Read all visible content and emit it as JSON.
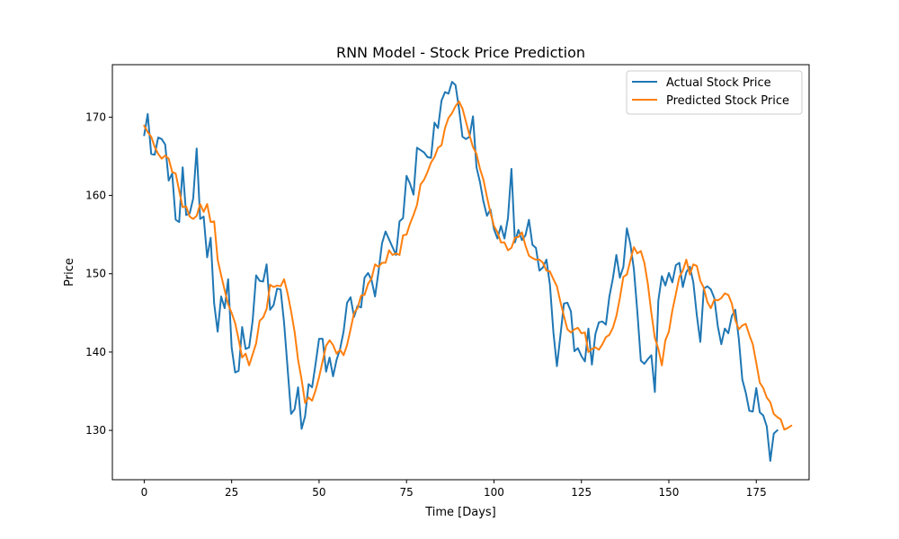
{
  "chart_data": {
    "type": "line",
    "title": "RNN Model - Stock Price Prediction",
    "xlabel": "Time [Days]",
    "ylabel": "Price",
    "xlim": [
      -9.1,
      190.1
    ],
    "ylim": [
      123.7,
      176.7
    ],
    "xticks": [
      0,
      25,
      50,
      75,
      100,
      125,
      150,
      175
    ],
    "yticks": [
      130,
      140,
      150,
      160,
      170
    ],
    "grid": false,
    "legend_position": "upper right",
    "series": [
      {
        "name": "Actual Stock Price",
        "color": "#1f77b4",
        "x_start": 0,
        "values": [
          167.7,
          170.4,
          165.3,
          165.2,
          167.4,
          167.2,
          166.5,
          161.9,
          162.8,
          156.9,
          156.6,
          163.6,
          157.5,
          157.7,
          159.6,
          166.0,
          157.0,
          157.3,
          152.1,
          154.6,
          146.2,
          142.6,
          147.1,
          145.6,
          149.3,
          140.6,
          137.4,
          137.6,
          143.2,
          140.4,
          140.6,
          144.0,
          149.8,
          149.1,
          149.0,
          151.2,
          145.4,
          146.0,
          148.1,
          148.0,
          143.7,
          137.9,
          132.1,
          132.7,
          135.5,
          130.2,
          131.8,
          135.9,
          135.5,
          138.5,
          141.7,
          141.7,
          137.5,
          139.3,
          136.9,
          139.0,
          140.4,
          142.6,
          146.3,
          147.0,
          144.5,
          145.9,
          145.7,
          149.5,
          150.1,
          149.2,
          147.1,
          150.3,
          153.9,
          155.4,
          154.4,
          153.4,
          152.4,
          156.7,
          157.1,
          162.5,
          161.5,
          160.1,
          166.1,
          165.8,
          165.5,
          164.9,
          164.8,
          169.3,
          168.6,
          172.1,
          173.2,
          173.0,
          174.5,
          174.1,
          171.1,
          167.5,
          167.2,
          167.5,
          170.1,
          163.6,
          161.7,
          159.2,
          157.4,
          158.2,
          155.7,
          154.5,
          156.1,
          154.5,
          157.1,
          163.4,
          154.0,
          155.6,
          154.3,
          154.9,
          156.9,
          153.7,
          153.3,
          150.4,
          150.8,
          151.8,
          148.6,
          142.5,
          138.2,
          142.1,
          146.2,
          146.3,
          145.2,
          140.1,
          140.5,
          139.5,
          138.8,
          143.0,
          138.4,
          142.3,
          143.8,
          143.9,
          143.5,
          147.1,
          149.4,
          152.4,
          149.5,
          150.9,
          155.8,
          153.8,
          150.6,
          145.1,
          138.9,
          138.5,
          139.1,
          139.6,
          134.9,
          146.6,
          149.7,
          148.5,
          150.1,
          148.9,
          151.1,
          151.4,
          148.3,
          150.2,
          150.9,
          148.9,
          144.7,
          141.3,
          148.1,
          148.4,
          148.0,
          146.9,
          143.3,
          141.0,
          143.0,
          142.4,
          144.6,
          145.4,
          141.7,
          136.5,
          134.8,
          132.5,
          132.4,
          135.4,
          132.3,
          131.9,
          130.5,
          126.1,
          129.6,
          130.0
        ]
      },
      {
        "name": "Predicted Stock Price",
        "color": "#ff7f0e",
        "x_start": 0,
        "values": [
          168.9,
          168.1,
          167.5,
          166.2,
          165.3,
          164.7,
          165.1,
          164.7,
          163.0,
          162.8,
          160.6,
          158.5,
          158.6,
          157.3,
          157.0,
          157.4,
          158.9,
          157.9,
          158.9,
          156.6,
          156.7,
          151.8,
          149.8,
          147.9,
          146.1,
          145.0,
          143.7,
          141.6,
          139.3,
          139.8,
          138.3,
          139.7,
          141.1,
          144.0,
          144.4,
          145.5,
          148.6,
          148.3,
          148.5,
          148.4,
          149.3,
          147.5,
          145.2,
          142.6,
          139.0,
          136.5,
          133.5,
          134.2,
          133.8,
          135.1,
          136.8,
          138.8,
          140.8,
          141.5,
          140.9,
          139.8,
          140.3,
          139.6,
          140.9,
          142.9,
          145.0,
          145.6,
          147.2,
          147.3,
          148.7,
          149.4,
          151.2,
          150.9,
          151.4,
          151.4,
          153.0,
          152.4,
          152.6,
          152.4,
          154.9,
          155.0,
          156.4,
          157.5,
          158.8,
          161.4,
          162.0,
          163.0,
          164.2,
          164.9,
          166.1,
          166.4,
          168.6,
          169.9,
          170.5,
          171.4,
          172.0,
          171.1,
          169.4,
          167.7,
          166.2,
          165.3,
          163.4,
          162.0,
          159.8,
          157.8,
          156.1,
          155.3,
          154.0,
          154.0,
          153.0,
          153.3,
          154.6,
          154.7,
          155.3,
          153.6,
          152.3,
          152.0,
          151.8,
          151.8,
          151.4,
          150.4,
          150.3,
          149.3,
          148.4,
          146.4,
          144.6,
          142.9,
          142.5,
          142.9,
          143.1,
          142.4,
          142.5,
          140.0,
          140.4,
          140.6,
          140.3,
          141.0,
          141.9,
          142.2,
          143.1,
          144.6,
          146.9,
          149.6,
          149.9,
          151.7,
          153.4,
          152.6,
          152.9,
          151.4,
          148.7,
          145.0,
          141.8,
          140.4,
          138.3,
          141.5,
          142.6,
          145.3,
          147.4,
          149.6,
          150.4,
          151.8,
          149.9,
          151.2,
          151.0,
          149.1,
          148.2,
          146.4,
          145.6,
          146.7,
          146.6,
          146.9,
          147.5,
          147.3,
          146.2,
          144.1,
          142.9,
          143.4,
          143.6,
          142.2,
          141.0,
          138.6,
          136.1,
          135.4,
          134.2,
          133.6,
          132.1,
          131.7,
          131.4,
          130.1,
          130.3,
          130.6
        ]
      }
    ]
  }
}
